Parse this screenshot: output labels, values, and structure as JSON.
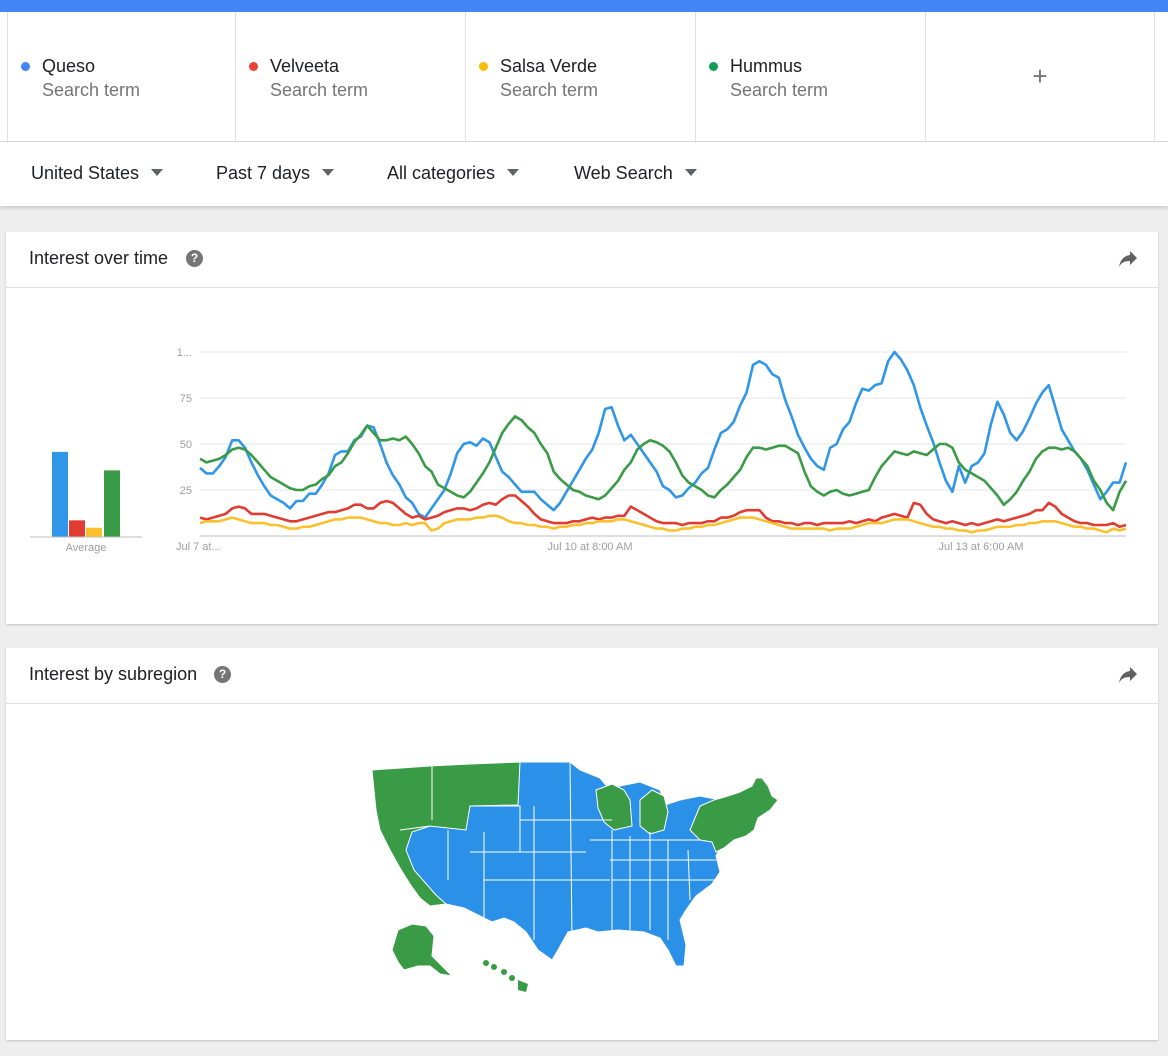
{
  "colors": {
    "queso": "#4285f4",
    "velveeta": "#db4437",
    "salsa": "#f4b400",
    "hummus": "#0f9d58",
    "accent": "#4285f4"
  },
  "terms": [
    {
      "name": "Queso",
      "sub": "Search term",
      "color": "#4285f4"
    },
    {
      "name": "Velveeta",
      "sub": "Search term",
      "color": "#ea4335"
    },
    {
      "name": "Salsa Verde",
      "sub": "Search term",
      "color": "#fbbc04"
    },
    {
      "name": "Hummus",
      "sub": "Search term",
      "color": "#0f9d58"
    }
  ],
  "add_term_label": "+",
  "filters": {
    "region": "United States",
    "time": "Past 7 days",
    "category": "All categories",
    "property": "Web Search"
  },
  "interest_over_time": {
    "title": "Interest over time",
    "help": "?"
  },
  "interest_by_subregion": {
    "title": "Interest by subregion",
    "help": "?"
  },
  "chart_data": {
    "type": "line",
    "y_ticks": [
      "1...",
      "75",
      "50",
      "25"
    ],
    "ylim": [
      0,
      100
    ],
    "x_tick_labels": [
      "Jul 7 at...",
      "Jul 10 at 8:00 AM",
      "Jul 13 at 6:00 AM"
    ],
    "grid": true,
    "average": {
      "label": "Average",
      "values": [
        46,
        9,
        5,
        36
      ]
    },
    "series": [
      {
        "name": "Queso",
        "color": "#2f96e8",
        "values": [
          37,
          34,
          34,
          38,
          43,
          52,
          52,
          48,
          40,
          33,
          27,
          22,
          20,
          18,
          15,
          19,
          19,
          23,
          23,
          28,
          34,
          44,
          46,
          46,
          52,
          54,
          60,
          59,
          50,
          40,
          33,
          28,
          21,
          18,
          12,
          10,
          15,
          20,
          25,
          34,
          45,
          50,
          51,
          49,
          53,
          51,
          43,
          35,
          32,
          28,
          24,
          24,
          24,
          20,
          17,
          14,
          18,
          24,
          30,
          36,
          42,
          47,
          56,
          69,
          70,
          60,
          52,
          55,
          50,
          45,
          40,
          35,
          27,
          25,
          21,
          22,
          26,
          29,
          34,
          37,
          47,
          56,
          58,
          62,
          71,
          78,
          93,
          95,
          93,
          88,
          86,
          74,
          65,
          55,
          48,
          42,
          38,
          36,
          48,
          50,
          58,
          62,
          72,
          80,
          79,
          82,
          83,
          95,
          100,
          96,
          90,
          82,
          70,
          60,
          51,
          40,
          30,
          24,
          38,
          29,
          38,
          40,
          45,
          61,
          73,
          66,
          56,
          52,
          57,
          64,
          72,
          78,
          82,
          70,
          58,
          52,
          46,
          42,
          36,
          28,
          20,
          24,
          29,
          29,
          40
        ]
      },
      {
        "name": "Velveeta",
        "color": "#e03c31",
        "values": [
          10,
          9,
          10,
          11,
          12,
          15,
          16,
          15,
          12,
          12,
          12,
          11,
          10,
          9,
          8,
          8,
          9,
          10,
          11,
          12,
          13,
          13,
          14,
          15,
          17,
          17,
          15,
          15,
          18,
          19,
          18,
          15,
          12,
          10,
          11,
          9,
          10,
          11,
          13,
          14,
          15,
          15,
          14,
          15,
          17,
          18,
          17,
          20,
          22,
          22,
          19,
          16,
          12,
          9,
          8,
          7,
          7,
          7,
          8,
          8,
          9,
          10,
          9,
          10,
          10,
          11,
          11,
          16,
          14,
          12,
          10,
          8,
          7,
          7,
          7,
          6,
          7,
          7,
          7,
          8,
          8,
          10,
          10,
          11,
          13,
          14,
          14,
          14,
          10,
          8,
          8,
          7,
          7,
          6,
          7,
          7,
          6,
          7,
          7,
          7,
          7,
          8,
          7,
          8,
          9,
          8,
          10,
          11,
          12,
          11,
          10,
          18,
          17,
          12,
          9,
          8,
          7,
          8,
          7,
          6,
          7,
          6,
          7,
          8,
          9,
          8,
          9,
          10,
          11,
          12,
          14,
          14,
          18,
          16,
          12,
          10,
          8,
          7,
          7,
          6,
          6,
          6,
          7,
          5,
          6
        ]
      },
      {
        "name": "Salsa Verde",
        "color": "#fbc02d",
        "values": [
          7,
          8,
          8,
          8,
          9,
          10,
          9,
          8,
          7,
          7,
          7,
          6,
          6,
          5,
          4,
          4,
          5,
          5,
          6,
          7,
          8,
          9,
          9,
          10,
          10,
          10,
          9,
          8,
          7,
          7,
          6,
          6,
          7,
          6,
          7,
          7,
          3,
          4,
          7,
          8,
          9,
          9,
          9,
          10,
          10,
          11,
          11,
          10,
          8,
          7,
          7,
          6,
          6,
          5,
          5,
          4,
          5,
          5,
          6,
          6,
          7,
          7,
          8,
          8,
          8,
          9,
          9,
          8,
          7,
          6,
          5,
          4,
          4,
          3,
          3,
          4,
          4,
          5,
          5,
          6,
          6,
          7,
          8,
          9,
          10,
          10,
          10,
          9,
          8,
          7,
          6,
          5,
          4,
          4,
          4,
          4,
          4,
          4,
          3,
          4,
          4,
          4,
          5,
          6,
          7,
          7,
          7,
          8,
          9,
          9,
          9,
          8,
          7,
          6,
          5,
          5,
          4,
          4,
          3,
          3,
          2,
          3,
          3,
          4,
          5,
          5,
          5,
          6,
          6,
          7,
          7,
          8,
          8,
          8,
          7,
          6,
          5,
          5,
          4,
          4,
          3,
          2,
          4,
          3,
          4
        ]
      },
      {
        "name": "Hummus",
        "color": "#3a9b46",
        "values": [
          42,
          40,
          41,
          42,
          44,
          47,
          48,
          47,
          44,
          40,
          36,
          32,
          30,
          28,
          26,
          25,
          25,
          27,
          28,
          31,
          33,
          38,
          40,
          45,
          51,
          55,
          60,
          56,
          52,
          52,
          53,
          52,
          54,
          50,
          45,
          38,
          35,
          28,
          26,
          24,
          22,
          21,
          24,
          29,
          34,
          40,
          48,
          56,
          61,
          65,
          63,
          59,
          56,
          50,
          45,
          35,
          31,
          28,
          25,
          24,
          22,
          21,
          20,
          22,
          26,
          30,
          36,
          40,
          47,
          50,
          52,
          51,
          49,
          46,
          40,
          33,
          29,
          27,
          25,
          22,
          21,
          25,
          28,
          32,
          36,
          43,
          48,
          48,
          47,
          48,
          49,
          49,
          47,
          45,
          35,
          27,
          24,
          22,
          24,
          25,
          23,
          22,
          23,
          24,
          25,
          32,
          38,
          42,
          46,
          45,
          44,
          46,
          45,
          44,
          47,
          50,
          50,
          48,
          40,
          36,
          34,
          32,
          30,
          26,
          22,
          17,
          20,
          24,
          30,
          35,
          42,
          46,
          48,
          48,
          47,
          48,
          46,
          42,
          38,
          30,
          25,
          18,
          14,
          24,
          30
        ]
      }
    ]
  },
  "map_data": {
    "legend_note": "",
    "states_green": [
      "WA",
      "OR",
      "CA",
      "ID",
      "MT",
      "WI",
      "MI",
      "PA",
      "NY",
      "NJ",
      "CT",
      "RI",
      "MA",
      "VT",
      "NH",
      "ME",
      "AK",
      "HI"
    ],
    "states_blue": [
      "NV",
      "UT",
      "AZ",
      "WY",
      "CO",
      "NM",
      "ND",
      "SD",
      "NE",
      "KS",
      "OK",
      "TX",
      "MN",
      "IA",
      "MO",
      "AR",
      "LA",
      "IL",
      "IN",
      "OH",
      "KY",
      "TN",
      "MS",
      "AL",
      "GA",
      "FL",
      "SC",
      "NC",
      "VA",
      "WV",
      "MD",
      "DE"
    ]
  }
}
